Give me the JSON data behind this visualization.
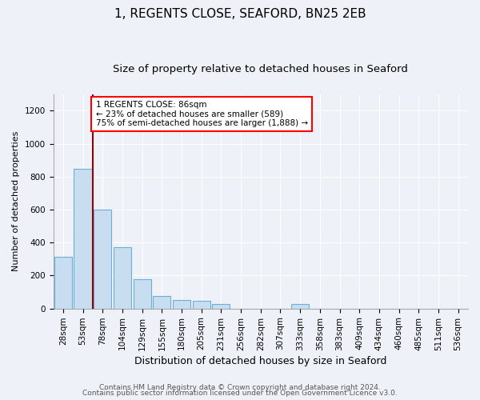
{
  "title1": "1, REGENTS CLOSE, SEAFORD, BN25 2EB",
  "title2": "Size of property relative to detached houses in Seaford",
  "xlabel": "Distribution of detached houses by size in Seaford",
  "ylabel": "Number of detached properties",
  "bar_labels": [
    "28sqm",
    "53sqm",
    "78sqm",
    "104sqm",
    "129sqm",
    "155sqm",
    "180sqm",
    "205sqm",
    "231sqm",
    "256sqm",
    "282sqm",
    "307sqm",
    "333sqm",
    "358sqm",
    "383sqm",
    "409sqm",
    "434sqm",
    "460sqm",
    "485sqm",
    "511sqm",
    "536sqm"
  ],
  "bar_values": [
    315,
    850,
    600,
    370,
    180,
    75,
    50,
    45,
    30,
    0,
    0,
    0,
    30,
    0,
    0,
    0,
    0,
    0,
    0,
    0,
    0
  ],
  "bar_color": "#c9ddf0",
  "bar_edgecolor": "#6baed6",
  "vline_color": "#990000",
  "vline_x": 1.5,
  "annotation_text": "1 REGENTS CLOSE: 86sqm\n← 23% of detached houses are smaller (589)\n75% of semi-detached houses are larger (1,888) →",
  "annotation_box_color": "white",
  "annotation_box_edgecolor": "red",
  "ylim": [
    0,
    1300
  ],
  "yticks": [
    0,
    200,
    400,
    600,
    800,
    1000,
    1200
  ],
  "footer1": "Contains HM Land Registry data © Crown copyright and database right 2024.",
  "footer2": "Contains public sector information licensed under the Open Government Licence v3.0.",
  "background_color": "#eef2f8",
  "plot_background": "#eef2f8",
  "title1_fontsize": 11,
  "title2_fontsize": 9.5,
  "xlabel_fontsize": 9,
  "ylabel_fontsize": 8,
  "tick_fontsize": 7.5,
  "footer_fontsize": 6.5
}
